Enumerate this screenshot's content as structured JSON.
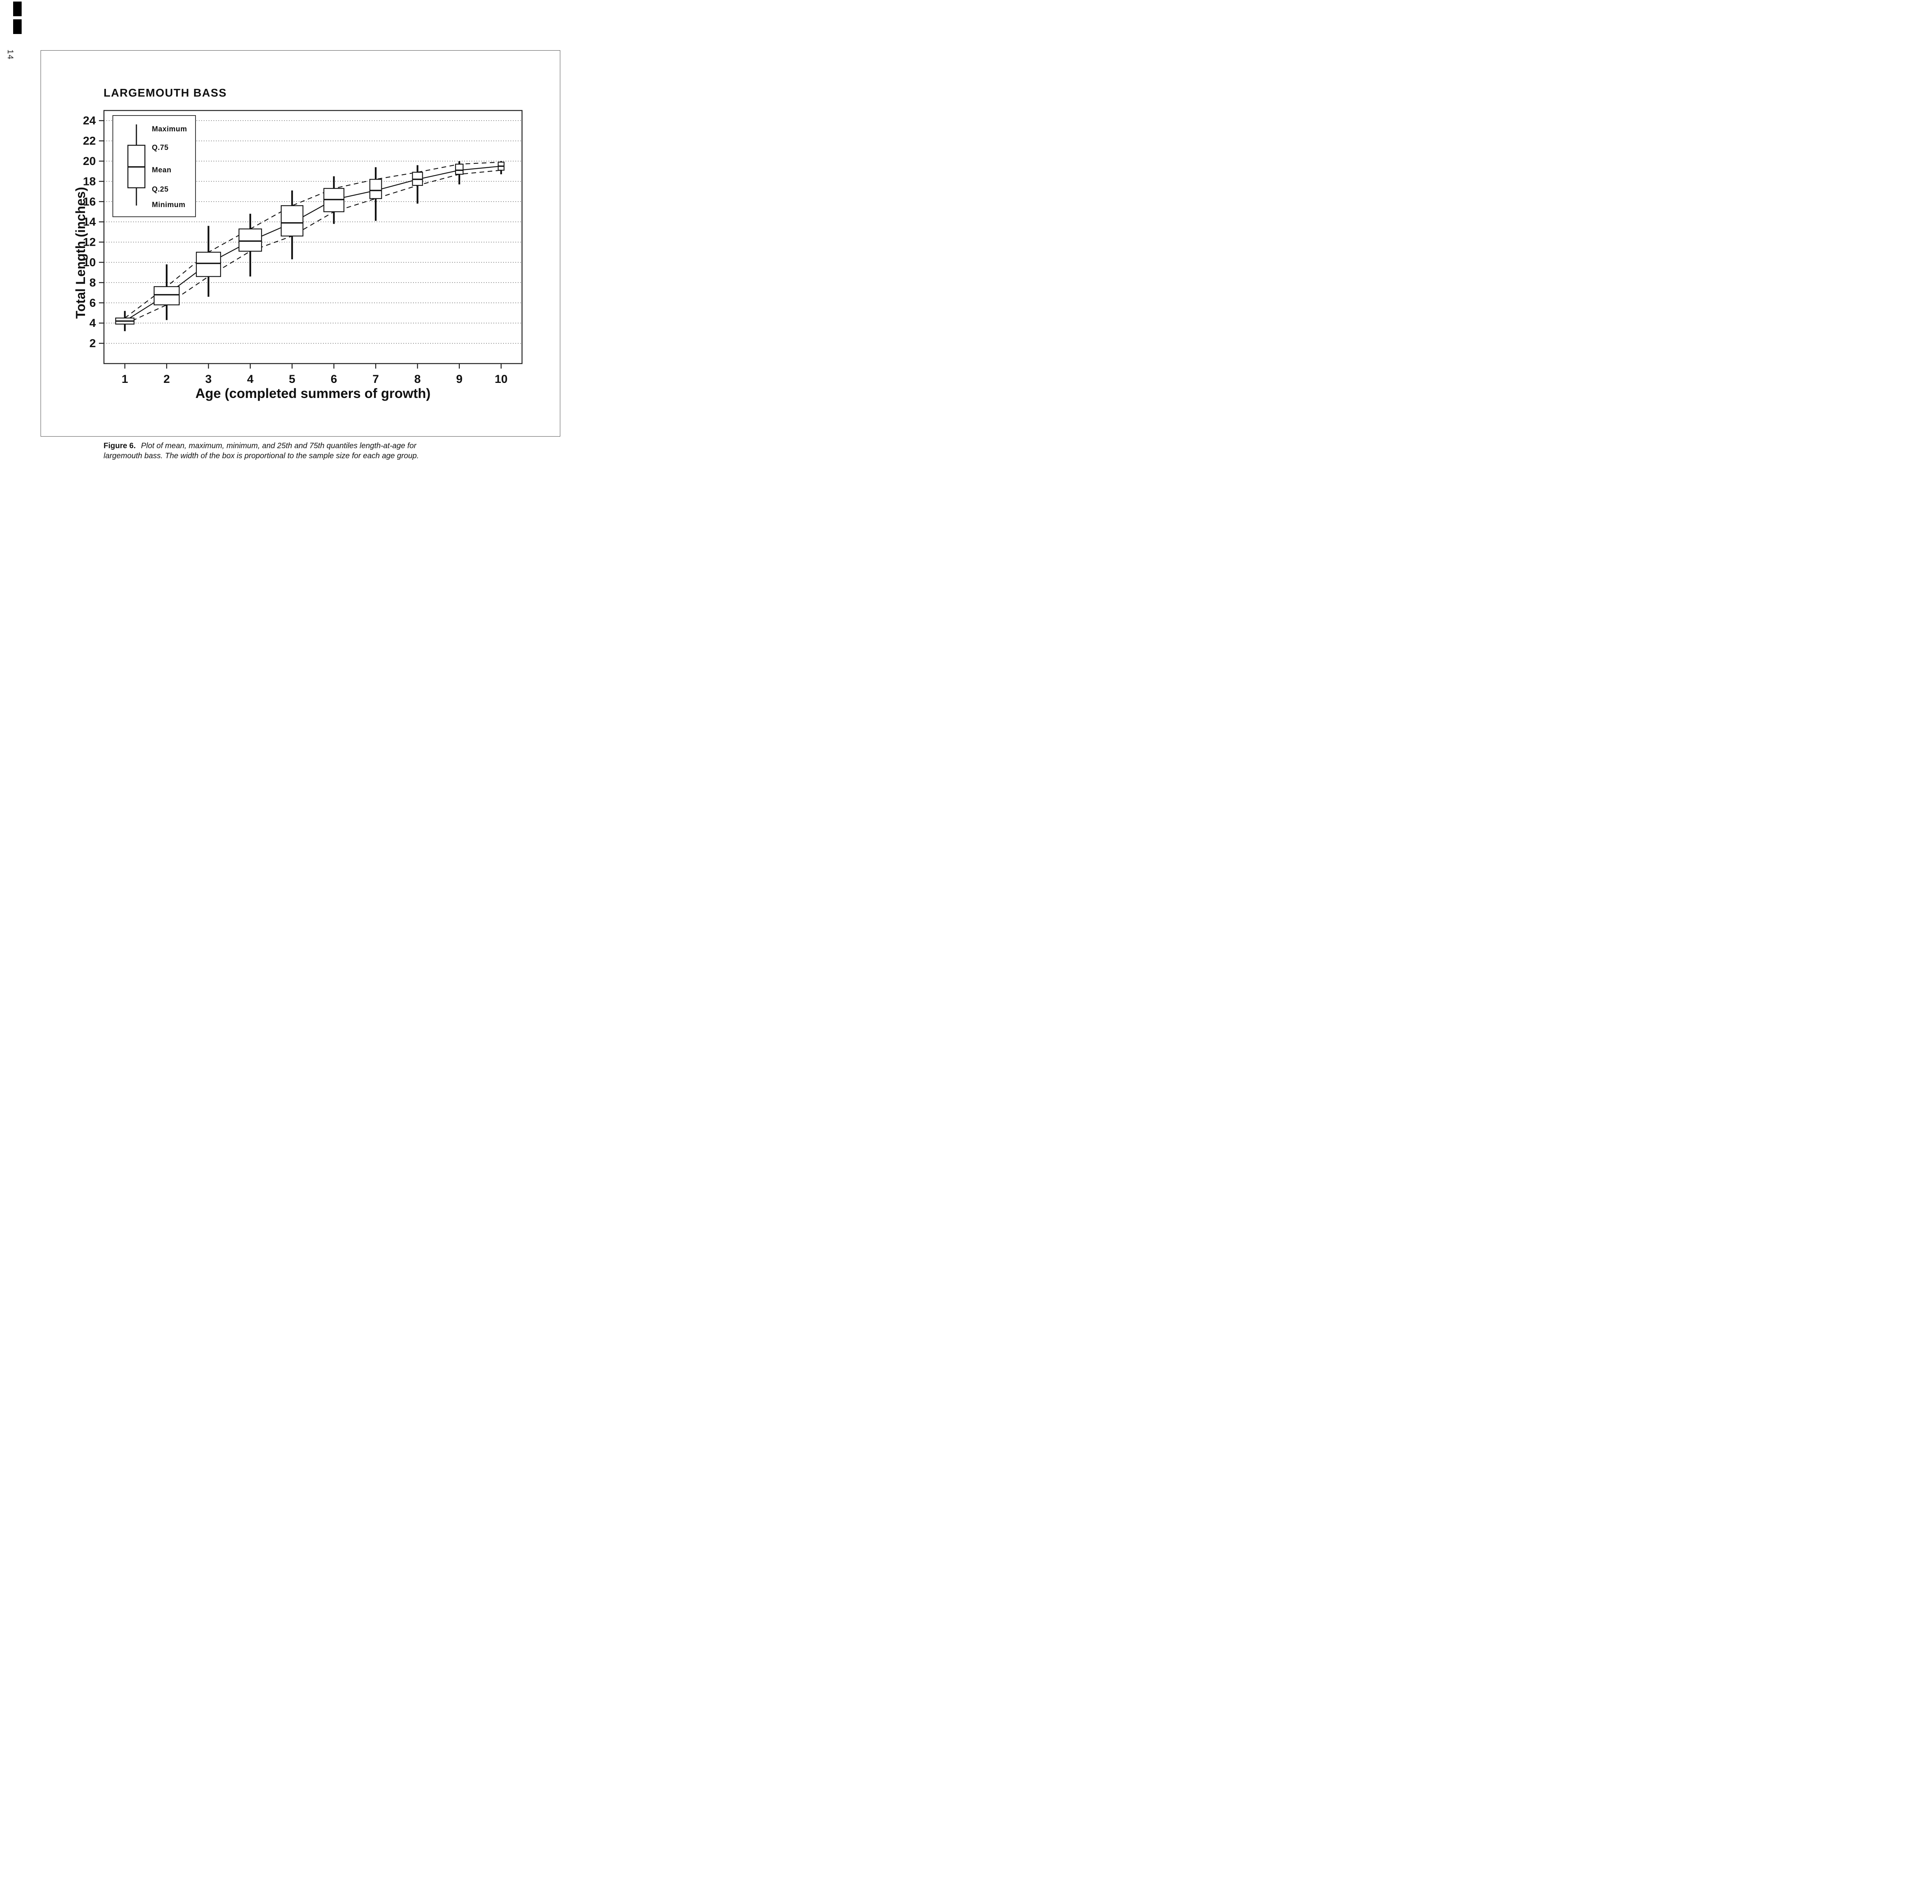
{
  "page": {
    "page_number": "14"
  },
  "figure": {
    "title": "LARGEMOUTH BASS",
    "caption_label": "Figure 6.",
    "caption_text": "Plot of mean, maximum, minimum, and 25th and 75th quantiles length-at-age for largemouth bass.  The width of the box is proportional to the sample size for each age group."
  },
  "chart_data": {
    "type": "boxplot",
    "title": "LARGEMOUTH BASS",
    "xlabel": "Age (completed summers of growth)",
    "ylabel": "Total Length (inches)",
    "xlim": [
      0.5,
      10.5
    ],
    "ylim": [
      0,
      25
    ],
    "x_ticks": [
      1,
      2,
      3,
      4,
      5,
      6,
      7,
      8,
      9,
      10
    ],
    "y_ticks": [
      2,
      4,
      6,
      8,
      10,
      12,
      14,
      16,
      18,
      20,
      22,
      24
    ],
    "grid": "dotted horizontal line at every y tick",
    "legend": {
      "position": "top-left",
      "labels": [
        "Maximum",
        "Q.75",
        "Mean",
        "Q.25",
        "Minimum"
      ]
    },
    "notes": "Box width proportional to sample size; solid line connects means; dashed lines connect Q.75 and Q.25 across ages",
    "boxes": [
      {
        "age": 1,
        "min": 3.2,
        "q25": 3.9,
        "mean": 4.2,
        "q75": 4.5,
        "max": 5.2,
        "box_width": 0.44
      },
      {
        "age": 2,
        "min": 4.3,
        "q25": 5.8,
        "mean": 6.8,
        "q75": 7.6,
        "max": 9.8,
        "box_width": 0.6
      },
      {
        "age": 3,
        "min": 6.6,
        "q25": 8.6,
        "mean": 9.9,
        "q75": 11.0,
        "max": 13.6,
        "box_width": 0.58
      },
      {
        "age": 4,
        "min": 8.6,
        "q25": 11.1,
        "mean": 12.1,
        "q75": 13.3,
        "max": 14.8,
        "box_width": 0.54
      },
      {
        "age": 5,
        "min": 10.3,
        "q25": 12.6,
        "mean": 13.9,
        "q75": 15.6,
        "max": 17.1,
        "box_width": 0.52
      },
      {
        "age": 6,
        "min": 13.8,
        "q25": 15.0,
        "mean": 16.2,
        "q75": 17.3,
        "max": 18.5,
        "box_width": 0.48
      },
      {
        "age": 7,
        "min": 14.1,
        "q25": 16.3,
        "mean": 17.1,
        "q75": 18.2,
        "max": 19.4,
        "box_width": 0.28
      },
      {
        "age": 8,
        "min": 15.8,
        "q25": 17.6,
        "mean": 18.2,
        "q75": 18.9,
        "max": 19.6,
        "box_width": 0.24
      },
      {
        "age": 9,
        "min": 17.7,
        "q25": 18.7,
        "mean": 19.1,
        "q75": 19.7,
        "max": 20.0,
        "box_width": 0.18
      },
      {
        "age": 10,
        "min": 18.7,
        "q25": 19.1,
        "mean": 19.5,
        "q75": 19.9,
        "max": 20.0,
        "box_width": 0.14
      }
    ]
  }
}
